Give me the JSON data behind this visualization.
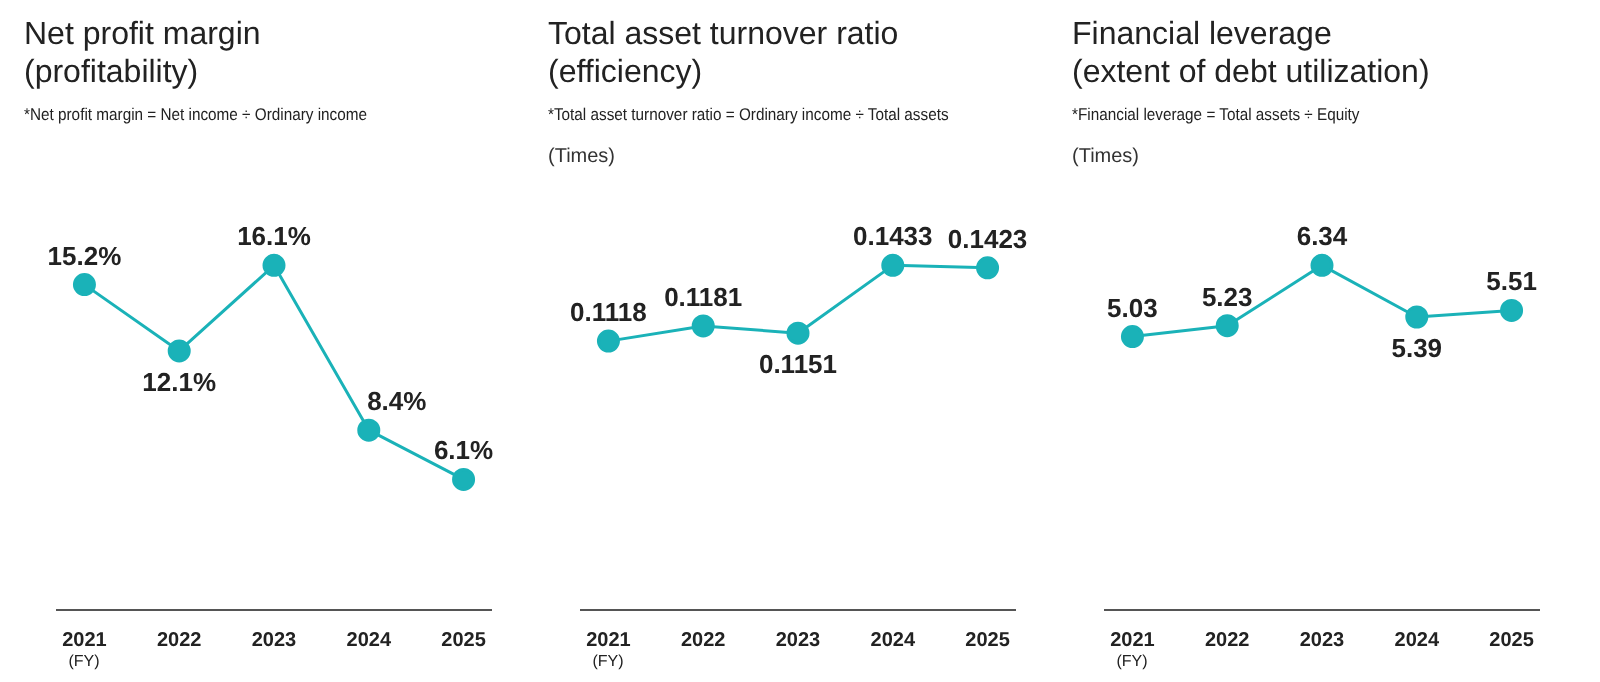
{
  "chart_data": [
    {
      "type": "line",
      "title": "Net profit margin\n(profitability)",
      "subtitle": "*Net profit margin = Net income ÷ Ordinary income",
      "xlabel": "(FY)",
      "categories": [
        "2021",
        "2022",
        "2023",
        "2024",
        "2025"
      ],
      "series": [
        {
          "color": "#1ab2b8",
          "values": [
            15.2,
            12.1,
            16.1,
            8.4,
            6.1
          ],
          "value_labels": [
            "15.2%",
            "12.1%",
            "16.1%",
            "8.4%",
            "6.1%"
          ]
        }
      ],
      "marker": "circle",
      "grid": false,
      "legend": false
    },
    {
      "type": "line",
      "title": "Total asset turnover ratio\n(efficiency)",
      "subtitle": "*Total asset turnover ratio = Ordinary income ÷ Total assets",
      "ylabel": "(Times)",
      "xlabel": "(FY)",
      "categories": [
        "2021",
        "2022",
        "2023",
        "2024",
        "2025"
      ],
      "series": [
        {
          "color": "#1ab2b8",
          "values": [
            0.1118,
            0.1181,
            0.1151,
            0.1433,
            0.1423
          ]
        }
      ],
      "data_labels": true,
      "marker": "circle",
      "grid": false,
      "legend": false
    },
    {
      "type": "line",
      "title": "Financial leverage\n(extent of debt utilization)",
      "subtitle": "*Financial leverage = Total assets ÷ Equity",
      "ylabel": "(Times)",
      "xlabel": "(FY)",
      "categories": [
        "2021",
        "2022",
        "2023",
        "2024",
        "2025"
      ],
      "series": [
        {
          "color": "#1ab2b8",
          "values": [
            5.03,
            5.23,
            6.34,
            5.39,
            5.51
          ]
        }
      ],
      "data_labels": true,
      "marker": "circle",
      "grid": false,
      "legend": false
    }
  ]
}
